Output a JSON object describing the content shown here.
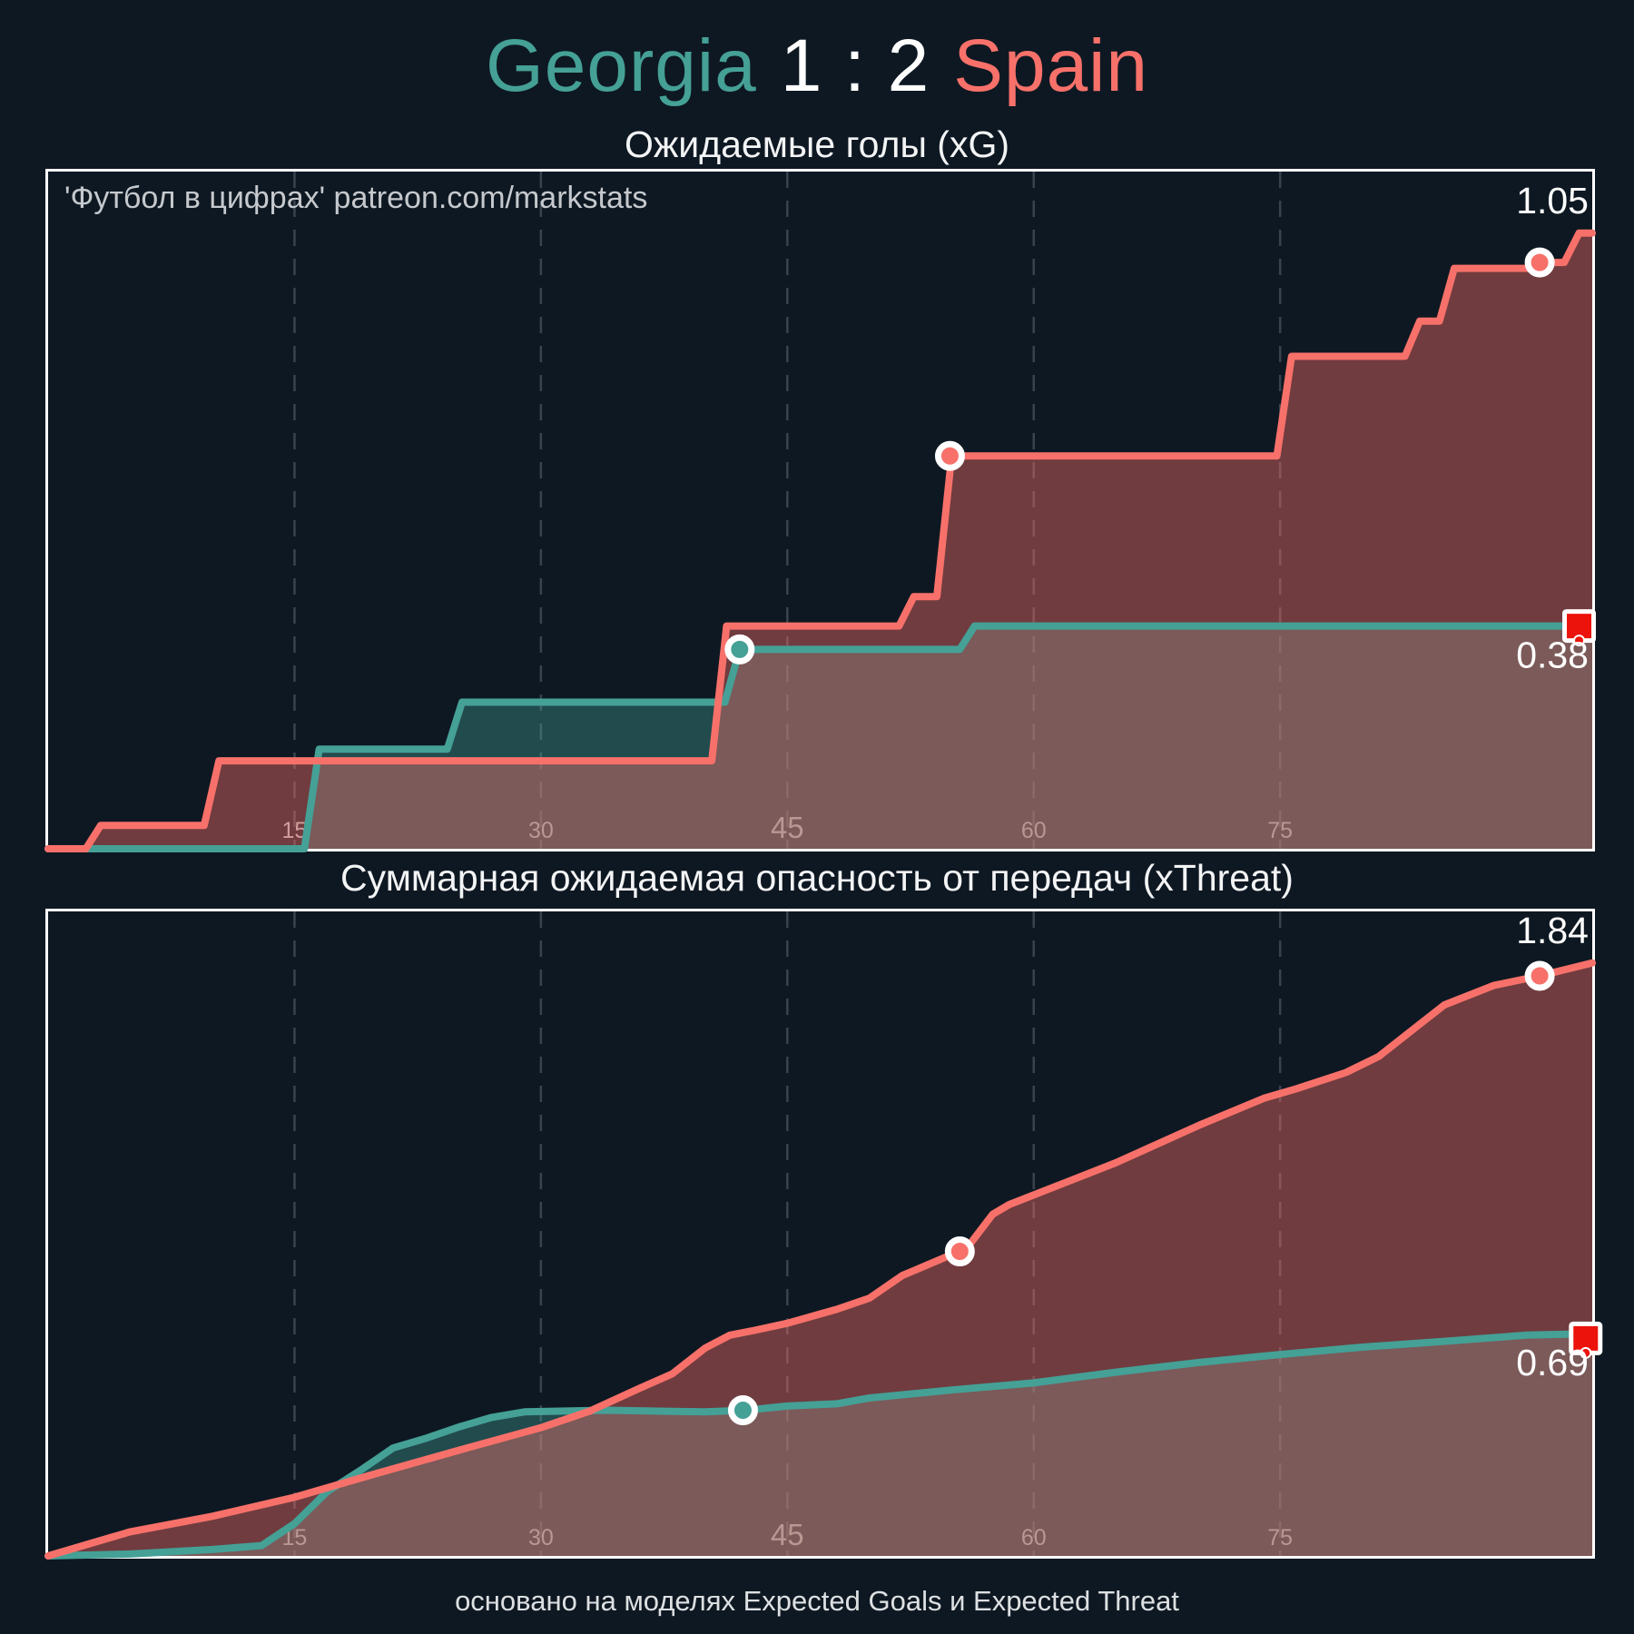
{
  "header": {
    "home_team": "Georgia",
    "score": "1 : 2",
    "away_team": "Spain"
  },
  "watermark": "'Футбол в цифрах' patreon.com/markstats",
  "footer": "основано на моделях Expected Goals и Expected Threat",
  "colors": {
    "background": "#0e1822",
    "georgia": "#45a096",
    "spain": "#f7716a",
    "white": "#ffffff",
    "tick_label": "#b9bec3",
    "gridline": "#39434f",
    "red_card": "#eb130b",
    "georgia_fill_opacity": 0.38,
    "spain_fill_opacity": 0.42
  },
  "chart_data": [
    {
      "id": "xg",
      "type": "line",
      "title": "Ожидаемые голы (xG)",
      "interpolation": "step",
      "riser": 0.9,
      "xmax": 94,
      "xticks": [
        15,
        30,
        45,
        60,
        75
      ],
      "big_tick": 45,
      "ylim": [
        0,
        1.155
      ],
      "grid": "vertical-dashed",
      "legend": "none",
      "series": [
        {
          "name": "Georgia",
          "color_key": "georgia",
          "events": [
            [
              15.6,
              0.17
            ],
            [
              24.3,
              0.25
            ],
            [
              41.2,
              0.34
            ],
            [
              55.5,
              0.38
            ]
          ],
          "final_value": 0.38
        },
        {
          "name": "Spain",
          "color_key": "spain",
          "events": [
            [
              2.3,
              0.04
            ],
            [
              9.5,
              0.15
            ],
            [
              40.4,
              0.38
            ],
            [
              51.8,
              0.43
            ],
            [
              54.1,
              0.67
            ],
            [
              74.8,
              0.84
            ],
            [
              82.6,
              0.9
            ],
            [
              84.7,
              0.99
            ],
            [
              90.2,
              1.0
            ],
            [
              92.3,
              1.05
            ]
          ],
          "final_value": 1.05
        }
      ],
      "markers": [
        {
          "team": "Georgia",
          "kind": "goal",
          "minute": 42.1,
          "value": 0.34
        },
        {
          "team": "Spain",
          "kind": "goal",
          "minute": 54.9,
          "value": 0.67
        },
        {
          "team": "Spain",
          "kind": "goal",
          "minute": 90.8,
          "value": 1.0
        },
        {
          "team": "Georgia",
          "kind": "red-card",
          "minute": 93.2,
          "value": 0.38
        }
      ],
      "end_labels": [
        {
          "text": "1.05",
          "value": 1.05,
          "offset_y": -22
        },
        {
          "text": "0.38",
          "value": 0.38,
          "offset_y": 46
        }
      ]
    },
    {
      "id": "xthreat",
      "type": "line",
      "title": "Суммарная ожидаемая опасность от передач (xThreat)",
      "interpolation": "linear",
      "xmax": 94,
      "xticks": [
        15,
        30,
        45,
        60,
        75
      ],
      "big_tick": 45,
      "ylim": [
        0,
        2.0
      ],
      "grid": "vertical-dashed",
      "legend": "none",
      "series": [
        {
          "name": "Georgia",
          "color_key": "georgia",
          "points": [
            [
              0,
              0
            ],
            [
              5,
              0.006
            ],
            [
              10,
              0.02
            ],
            [
              13,
              0.032
            ],
            [
              15,
              0.1
            ],
            [
              17,
              0.2
            ],
            [
              19,
              0.265
            ],
            [
              20,
              0.3
            ],
            [
              21,
              0.335
            ],
            [
              23,
              0.365
            ],
            [
              25,
              0.4
            ],
            [
              27,
              0.43
            ],
            [
              29,
              0.447
            ],
            [
              34,
              0.452
            ],
            [
              40,
              0.447
            ],
            [
              42.5,
              0.452
            ],
            [
              45,
              0.465
            ],
            [
              48,
              0.472
            ],
            [
              50,
              0.49
            ],
            [
              55,
              0.515
            ],
            [
              60,
              0.537
            ],
            [
              65,
              0.57
            ],
            [
              70,
              0.6
            ],
            [
              75,
              0.625
            ],
            [
              80,
              0.648
            ],
            [
              85,
              0.666
            ],
            [
              90,
              0.685
            ],
            [
              94,
              0.69
            ]
          ],
          "final_value": 0.69
        },
        {
          "name": "Spain",
          "color_key": "spain",
          "points": [
            [
              0,
              0
            ],
            [
              3,
              0.045
            ],
            [
              5,
              0.075
            ],
            [
              10,
              0.123
            ],
            [
              15,
              0.182
            ],
            [
              20,
              0.256
            ],
            [
              25,
              0.328
            ],
            [
              30,
              0.398
            ],
            [
              33,
              0.45
            ],
            [
              36,
              0.52
            ],
            [
              38,
              0.565
            ],
            [
              40,
              0.645
            ],
            [
              41.5,
              0.685
            ],
            [
              43,
              0.7
            ],
            [
              45,
              0.722
            ],
            [
              48,
              0.765
            ],
            [
              50,
              0.8
            ],
            [
              52,
              0.87
            ],
            [
              55,
              0.935
            ],
            [
              56,
              0.96
            ],
            [
              57.5,
              1.06
            ],
            [
              58.5,
              1.09
            ],
            [
              60,
              1.12
            ],
            [
              62,
              1.16
            ],
            [
              65,
              1.22
            ],
            [
              70,
              1.335
            ],
            [
              74,
              1.42
            ],
            [
              76,
              1.45
            ],
            [
              79,
              1.5
            ],
            [
              81,
              1.55
            ],
            [
              83,
              1.63
            ],
            [
              85,
              1.71
            ],
            [
              88,
              1.77
            ],
            [
              90.8,
              1.8
            ],
            [
              94,
              1.84
            ]
          ],
          "final_value": 1.84
        }
      ],
      "markers": [
        {
          "team": "Georgia",
          "kind": "goal",
          "minute": 42.3,
          "value": 0.452
        },
        {
          "team": "Spain",
          "kind": "goal",
          "minute": 55.5,
          "value": 0.945
        },
        {
          "team": "Spain",
          "kind": "goal",
          "minute": 90.8,
          "value": 1.8
        },
        {
          "team": "Georgia",
          "kind": "red-card",
          "minute": 93.6,
          "value": 0.675
        }
      ],
      "end_labels": [
        {
          "text": "1.84",
          "value": 1.84,
          "offset_y": -22
        },
        {
          "text": "0.69",
          "value": 0.69,
          "offset_y": 46
        }
      ]
    }
  ]
}
